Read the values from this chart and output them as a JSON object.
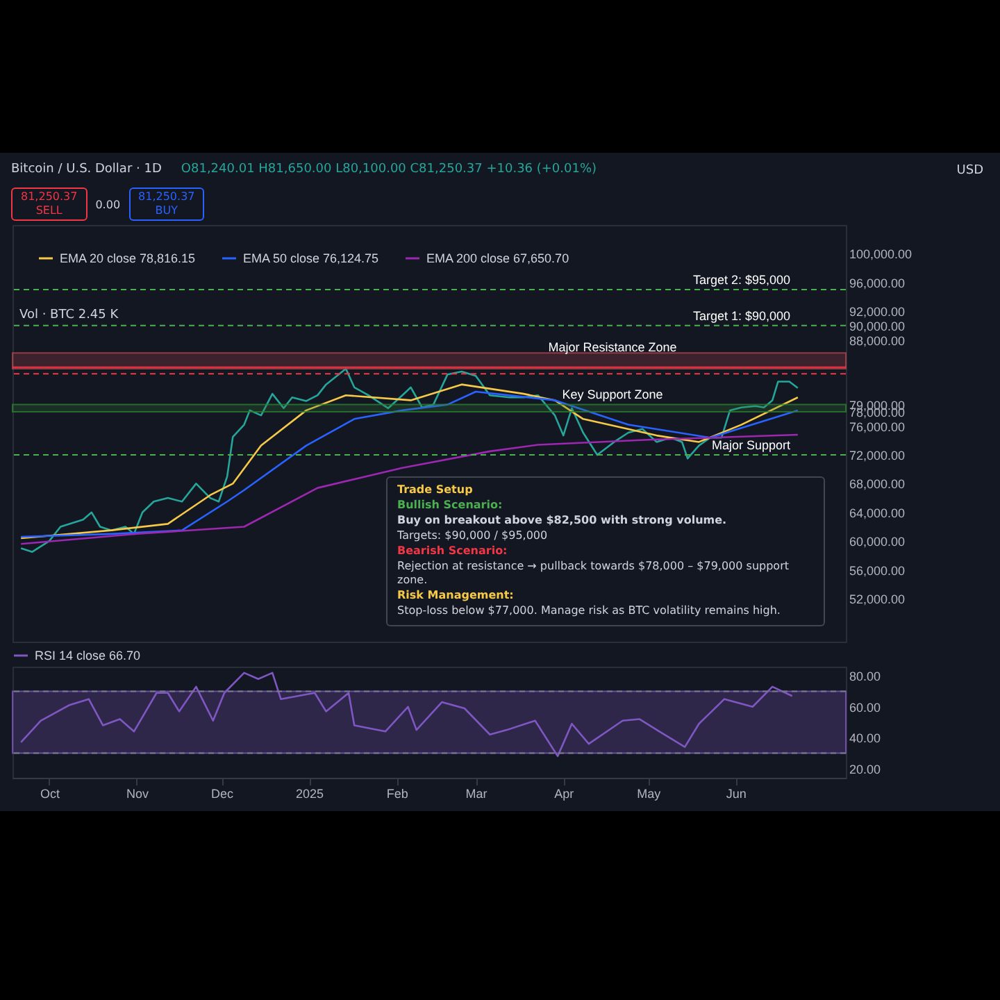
{
  "chart_data": [
    {
      "type": "line",
      "title": "Bitcoin / U.S. Dollar · 1D",
      "legend": "top left",
      "tick_labels": "y",
      "xlim": [
        "2024-09-18",
        "2025-07-10"
      ],
      "ylim": [
        46000,
        104000
      ],
      "yticks": [
        {
          "value": 52000,
          "label": "52,000.00"
        },
        {
          "value": 56000,
          "label": "56,000.00"
        },
        {
          "value": 60000,
          "label": "60,000.00"
        },
        {
          "value": 64000,
          "label": "64,000.00"
        },
        {
          "value": 68000,
          "label": "68,000.00"
        },
        {
          "value": 72000,
          "label": "72,000.00"
        },
        {
          "value": 76000,
          "label": "76,000.00"
        },
        {
          "value": 78000,
          "label": "78,000.00"
        },
        {
          "value": 79000,
          "label": "79,000.00"
        },
        {
          "value": 88000,
          "label": "88,000.00"
        },
        {
          "value": 90000,
          "label": "90,000.00"
        },
        {
          "value": 92000,
          "label": "92,000.00"
        },
        {
          "value": 96000,
          "label": "96,000.00"
        },
        {
          "value": 100000,
          "label": "100,000.00"
        }
      ],
      "series": [
        {
          "color": "#26a69a",
          "x": [
            "2024-09-21",
            "2024-09-25",
            "2024-10-01",
            "2024-10-05",
            "2024-10-13",
            "2024-10-16",
            "2024-10-19",
            "2024-10-23",
            "2024-10-28",
            "2024-10-31",
            "2024-11-03",
            "2024-11-07",
            "2024-11-12",
            "2024-11-17",
            "2024-11-22",
            "2024-11-27",
            "2024-11-30",
            "2024-12-03",
            "2024-12-05",
            "2024-12-09",
            "2024-12-11",
            "2024-12-15",
            "2024-12-19",
            "2024-12-23",
            "2024-12-26",
            "2024-12-31",
            "2025-01-04",
            "2025-01-07",
            "2025-01-14",
            "2025-01-17",
            "2025-01-22",
            "2025-01-29",
            "2025-02-03",
            "2025-02-06",
            "2025-02-10",
            "2025-02-14",
            "2025-02-19",
            "2025-02-24",
            "2025-03-01",
            "2025-03-06",
            "2025-03-13",
            "2025-03-18",
            "2025-03-23",
            "2025-03-29",
            "2025-04-01",
            "2025-04-04",
            "2025-04-08",
            "2025-04-13",
            "2025-04-19",
            "2025-04-24",
            "2025-04-29",
            "2025-05-04",
            "2025-05-09",
            "2025-05-13",
            "2025-05-15",
            "2025-05-19",
            "2025-05-23",
            "2025-05-27",
            "2025-05-30",
            "2025-06-03",
            "2025-06-08",
            "2025-06-11",
            "2025-06-14",
            "2025-06-16",
            "2025-06-20",
            "2025-06-23"
          ],
          "values": [
            59000,
            58500,
            60000,
            62000,
            63000,
            64000,
            62000,
            61500,
            62000,
            61000,
            64000,
            65500,
            66000,
            65500,
            68000,
            66000,
            65500,
            69000,
            74500,
            76200,
            78200,
            77500,
            80500,
            78500,
            80000,
            79500,
            80300,
            81800,
            84000,
            81400,
            80300,
            78500,
            80300,
            81400,
            78600,
            79000,
            83200,
            83600,
            83000,
            80300,
            80000,
            80000,
            80300,
            77500,
            74700,
            78500,
            75100,
            72000,
            73800,
            75100,
            75600,
            73800,
            74400,
            73800,
            71500,
            73300,
            74400,
            74400,
            78200,
            78600,
            78800,
            78600,
            79600,
            82200,
            82200,
            81300
          ]
        },
        {
          "name": "EMA 20 close   78,816.15",
          "color": "#f7c948",
          "x": [
            "2024-09-21",
            "2024-10-23",
            "2024-11-12",
            "2024-11-27",
            "2024-12-05",
            "2024-12-15",
            "2024-12-31",
            "2025-01-14",
            "2025-02-06",
            "2025-02-24",
            "2025-03-18",
            "2025-03-29",
            "2025-04-08",
            "2025-05-04",
            "2025-05-19",
            "2025-06-03",
            "2025-06-23"
          ],
          "values": [
            60400,
            61500,
            62400,
            66400,
            68000,
            73300,
            78200,
            80300,
            79600,
            81800,
            80500,
            79600,
            77000,
            74700,
            73800,
            76200,
            80000
          ]
        },
        {
          "name": "EMA 50 close   76,124.75",
          "color": "#2962ff",
          "x": [
            "2024-09-21",
            "2024-10-23",
            "2024-11-17",
            "2024-12-03",
            "2024-12-09",
            "2024-12-31",
            "2025-01-17",
            "2025-02-03",
            "2025-02-19",
            "2025-03-01",
            "2025-03-29",
            "2025-04-24",
            "2025-05-23",
            "2025-06-23"
          ],
          "values": [
            60600,
            61000,
            61500,
            65500,
            67100,
            73300,
            77000,
            78200,
            79000,
            80800,
            79600,
            76200,
            74400,
            78200
          ]
        },
        {
          "name": "EMA 200 close   67,650.70",
          "color": "#9c27b0",
          "x": [
            "2024-09-21",
            "2024-11-01",
            "2024-12-09",
            "2025-01-04",
            "2025-02-03",
            "2025-03-06",
            "2025-03-23",
            "2025-05-01",
            "2025-06-23"
          ],
          "values": [
            59600,
            61000,
            62000,
            67400,
            70200,
            72500,
            73400,
            74100,
            74800
          ]
        }
      ],
      "bands": [
        {
          "axis": "y",
          "from": 84000,
          "to": 86200,
          "label": "Major Resistance Zone",
          "color": "#b2434b"
        },
        {
          "axis": "y",
          "from": 78000,
          "to": 79000,
          "label": "Key Support Zone",
          "color": "#2e7d32"
        }
      ],
      "ref_lines": [
        {
          "axis": "y",
          "value": 95000,
          "label": "Target 2: $95,000",
          "color": "#4caf50",
          "line_style": "dashed"
        },
        {
          "axis": "y",
          "value": 90000,
          "label": "Target 1: $90,000",
          "color": "#4caf50",
          "line_style": "dashed"
        },
        {
          "axis": "y",
          "value": 84200,
          "color": "#f23645",
          "line_style": "solid"
        },
        {
          "axis": "y",
          "value": 83300,
          "color": "#f23645",
          "line_style": "dashed"
        },
        {
          "axis": "y",
          "value": 72000,
          "label": "Major Support",
          "color": "#4caf50",
          "line_style": "dashed"
        }
      ],
      "annotations": [
        "O81,240.01 H81,650.00 L80,100.00 C81,250.37 +10.36 (+0.01%)",
        "81,250.37",
        "SELL",
        "0.00",
        "81,250.37",
        "BUY",
        "Vol · BTC   2.45 K",
        "USD",
        "Trade Setup",
        "Bullish Scenario:",
        "Buy on breakout above $82,500 with strong volume.",
        "Targets: $90,000 / $95,000",
        "Bearish Scenario:",
        "Rejection at resistance → pullback towards $78,000 – $79,000 support zone.",
        "Risk Management:",
        "Stop-loss below $77,000. Manage risk as BTC volatility remains high."
      ]
    },
    {
      "type": "line",
      "legend": "top left",
      "xlim": [
        "2024-09-18",
        "2025-07-10"
      ],
      "ylim": [
        14,
        86
      ],
      "yticks": [
        {
          "value": 20,
          "label": "20.00"
        },
        {
          "value": 40,
          "label": "40.00"
        },
        {
          "value": 60,
          "label": "60.00"
        },
        {
          "value": 80,
          "label": "80.00"
        }
      ],
      "xticks": [
        {
          "value": "2024-10-01",
          "label": "Oct"
        },
        {
          "value": "2024-11-01",
          "label": "Nov"
        },
        {
          "value": "2024-12-01",
          "label": "Dec"
        },
        {
          "value": "2025-01-01",
          "label": "2025"
        },
        {
          "value": "2025-02-01",
          "label": "Feb"
        },
        {
          "value": "2025-03-01",
          "label": "Mar"
        },
        {
          "value": "2025-04-01",
          "label": "Apr"
        },
        {
          "value": "2025-05-01",
          "label": "May"
        },
        {
          "value": "2025-06-01",
          "label": "Jun"
        }
      ],
      "series": [
        {
          "name": "RSI 14 close   66.70",
          "color": "#7e57c2",
          "x": [
            "2024-09-21",
            "2024-09-28",
            "2024-10-08",
            "2024-10-15",
            "2024-10-20",
            "2024-10-26",
            "2024-10-31",
            "2024-11-08",
            "2024-11-12",
            "2024-11-16",
            "2024-11-22",
            "2024-11-28",
            "2024-12-02",
            "2024-12-09",
            "2024-12-14",
            "2024-12-19",
            "2024-12-22",
            "2025-01-03",
            "2025-01-07",
            "2025-01-15",
            "2025-01-17",
            "2025-01-28",
            "2025-02-05",
            "2025-02-08",
            "2025-02-17",
            "2025-02-25",
            "2025-03-06",
            "2025-03-12",
            "2025-03-22",
            "2025-03-30",
            "2025-04-04",
            "2025-04-10",
            "2025-04-22",
            "2025-04-28",
            "2025-05-05",
            "2025-05-14",
            "2025-05-19",
            "2025-05-28",
            "2025-06-07",
            "2025-06-14",
            "2025-06-21"
          ],
          "values": [
            37,
            51,
            61,
            65,
            48,
            52,
            44,
            69,
            69,
            57,
            73,
            51,
            69,
            82,
            78,
            82,
            65,
            69,
            57,
            69,
            48,
            44,
            60,
            45,
            63,
            59,
            42,
            45,
            51,
            28,
            49,
            36,
            51,
            52,
            44,
            34,
            49,
            65,
            60,
            73,
            67
          ]
        }
      ],
      "bands": [
        {
          "axis": "y",
          "from": 30,
          "to": 70,
          "color": "#7e57c2"
        }
      ],
      "ref_lines": [
        {
          "axis": "y",
          "value": 70,
          "color": "#787b86",
          "line_style": "dashed"
        },
        {
          "axis": "y",
          "value": 30,
          "color": "#787b86",
          "line_style": "dashed"
        }
      ]
    }
  ]
}
